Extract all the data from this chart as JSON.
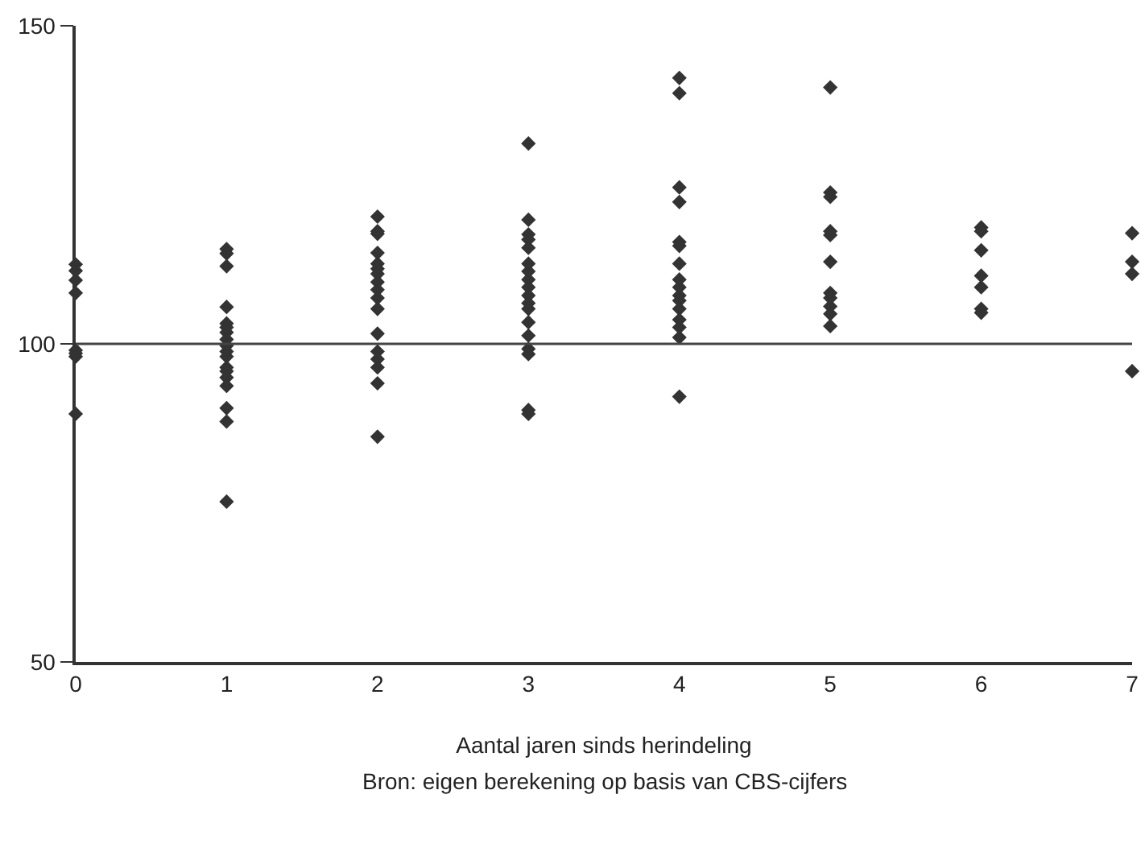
{
  "chart_data": {
    "type": "scatter",
    "xlabel": "Aantal jaren sinds herindeling",
    "annotations": [
      "Bron: eigen berekening op basis van CBS-cijfers"
    ],
    "x": [
      0,
      0,
      0,
      0,
      0,
      0,
      0,
      0,
      1,
      1,
      1,
      1,
      1,
      1,
      1,
      1,
      1,
      1,
      1,
      1,
      1,
      1,
      1,
      1,
      1,
      1,
      2,
      2,
      2,
      2,
      2,
      2,
      2,
      2,
      2,
      2,
      2,
      2,
      2,
      2,
      2,
      2,
      2,
      3,
      3,
      3,
      3,
      3,
      3,
      3,
      3,
      3,
      3,
      3,
      3,
      3,
      3,
      3,
      3,
      3,
      3,
      4,
      4,
      4,
      4,
      4,
      4,
      4,
      4,
      4,
      4,
      4,
      4,
      4,
      4,
      4,
      4,
      5,
      5,
      5,
      5,
      5,
      5,
      5,
      5,
      5,
      5,
      5,
      6,
      6,
      6,
      6,
      6,
      6,
      6,
      7,
      7,
      7,
      7
    ],
    "values": [
      112.5,
      111.5,
      110,
      108,
      99,
      98.5,
      98,
      89,
      114.9,
      114.2,
      112.2,
      105.8,
      103.2,
      102.6,
      101.8,
      100.7,
      99.7,
      98.8,
      98,
      96.3,
      95.7,
      94.7,
      93.4,
      89.9,
      87.8,
      75.2,
      120,
      117.7,
      117.3,
      114.3,
      112.6,
      111.8,
      111,
      109.7,
      108.5,
      107.2,
      105.5,
      101.6,
      98.8,
      97.6,
      96.3,
      93.8,
      85.4,
      131.5,
      119.5,
      117.2,
      116.4,
      115.1,
      112.6,
      111.4,
      110.1,
      108.9,
      107.6,
      106.4,
      105.5,
      103.4,
      101.3,
      99.2,
      98.4,
      89.6,
      89,
      141.8,
      139.4,
      124.6,
      122.3,
      116,
      115.4,
      112.6,
      110.1,
      108.9,
      107.6,
      106.8,
      105.5,
      103.8,
      102.6,
      101,
      91.7,
      140.3,
      123.8,
      123.1,
      117.7,
      117.1,
      112.9,
      108,
      107.2,
      105.9,
      104.7,
      102.8,
      118.3,
      117.7,
      114.7,
      110.7,
      108.9,
      105.5,
      104.9,
      117.4,
      112.9,
      111,
      95.7
    ],
    "color": "#333333",
    "marker": "diamond",
    "xlim": [
      0,
      7
    ],
    "xticks": [
      0,
      1,
      2,
      3,
      4,
      5,
      6,
      7
    ],
    "ylim": [
      50,
      150
    ],
    "yticks": [
      50,
      100,
      150
    ],
    "ref_lines": [
      {
        "axis": "y",
        "value": 100,
        "color": "#444444"
      }
    ]
  }
}
